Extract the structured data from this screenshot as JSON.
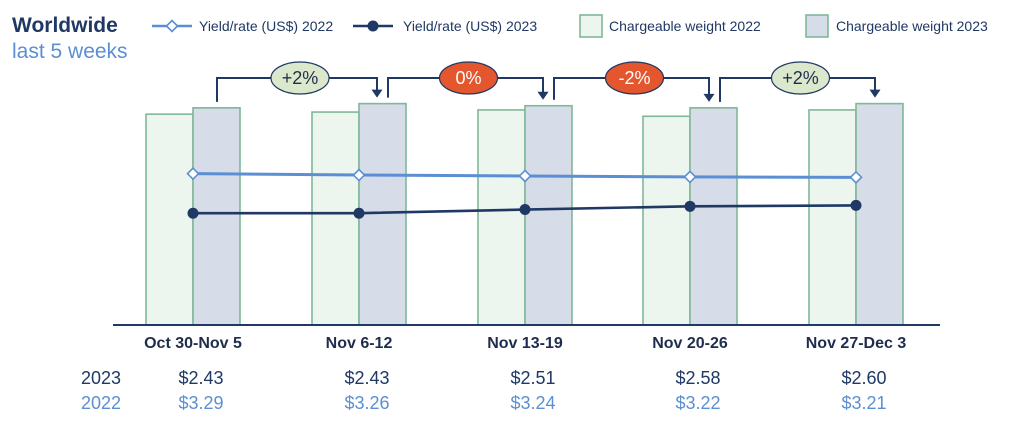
{
  "chart_data": {
    "type": "bar",
    "title": "Worldwide",
    "subtitle": "last 5 weeks",
    "categories": [
      "Oct 30-Nov 5",
      "Nov 6-12",
      "Nov 13-19",
      "Nov 20-26",
      "Nov 27-Dec 3"
    ],
    "bar_series": [
      {
        "name": "Chargeable weight 2022",
        "values": [
          100,
          101,
          102,
          99,
          102
        ],
        "color": "#edf5ef",
        "stroke": "#7fb898"
      },
      {
        "name": "Chargeable weight 2023",
        "values": [
          103,
          105,
          104,
          103,
          105
        ],
        "color": "#d7dde8",
        "stroke": "#7fb898"
      }
    ],
    "line_series": [
      {
        "name": "Yield/rate (US$) 2022",
        "values": [
          3.29,
          3.26,
          3.24,
          3.22,
          3.21
        ],
        "color": "#5b8fd3",
        "marker": "diamond-open"
      },
      {
        "name": "Yield/rate (US$) 2023",
        "values": [
          2.43,
          2.43,
          2.51,
          2.58,
          2.6
        ],
        "color": "#1f3864",
        "marker": "circle-filled"
      }
    ],
    "changes": [
      {
        "label": "+2%",
        "fill": "#dbe8cc",
        "text_color": "#1f2d4d"
      },
      {
        "label": "0%",
        "fill": "#e4572e",
        "text_color": "#ffffff"
      },
      {
        "label": "-2%",
        "fill": "#e4572e",
        "text_color": "#ffffff"
      },
      {
        "label": "+2%",
        "fill": "#dbe8cc",
        "text_color": "#1f2d4d"
      }
    ],
    "table": {
      "row_2023_label": "2023",
      "row_2022_label": "2022",
      "values_2023": [
        "$2.43",
        "$2.43",
        "$2.51",
        "$2.58",
        "$2.60"
      ],
      "values_2022": [
        "$3.29",
        "$3.26",
        "$3.24",
        "$3.22",
        "$3.21"
      ]
    },
    "bar_ylim": [
      0,
      120
    ],
    "line_ylim": [
      0,
      5.5
    ],
    "grid": false,
    "legend_position": "top"
  },
  "colors": {
    "title": "#1f3864",
    "subtitle": "#5b8fd3",
    "axis": "#1f3864",
    "bracket": "#1f3864"
  }
}
